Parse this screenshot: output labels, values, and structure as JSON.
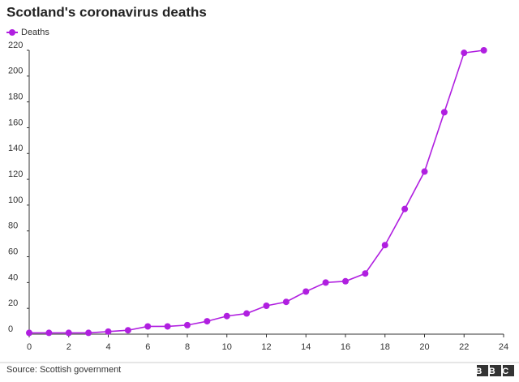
{
  "chart_data": {
    "type": "line",
    "title": "Scotland's coronavirus deaths",
    "x": [
      0,
      1,
      2,
      3,
      4,
      5,
      6,
      7,
      8,
      9,
      10,
      11,
      12,
      13,
      14,
      15,
      16,
      17,
      18,
      19,
      20,
      21,
      22,
      23
    ],
    "series": [
      {
        "name": "Deaths",
        "color": "#b01fe0",
        "values": [
          1,
          1,
          1,
          1,
          2,
          3,
          6,
          6,
          7,
          10,
          14,
          16,
          22,
          25,
          33,
          40,
          41,
          47,
          69,
          97,
          126,
          172,
          218,
          220
        ]
      }
    ],
    "xlim": [
      0,
      24
    ],
    "xticks": [
      0,
      2,
      4,
      6,
      8,
      10,
      12,
      14,
      16,
      18,
      20,
      22,
      24
    ],
    "ylim": [
      0,
      220
    ],
    "yticks": [
      0,
      20,
      40,
      60,
      80,
      100,
      120,
      140,
      160,
      180,
      200,
      220
    ],
    "grid": false,
    "legend": "top-left",
    "source": "Source: Scottish government",
    "logo": "BBC"
  }
}
